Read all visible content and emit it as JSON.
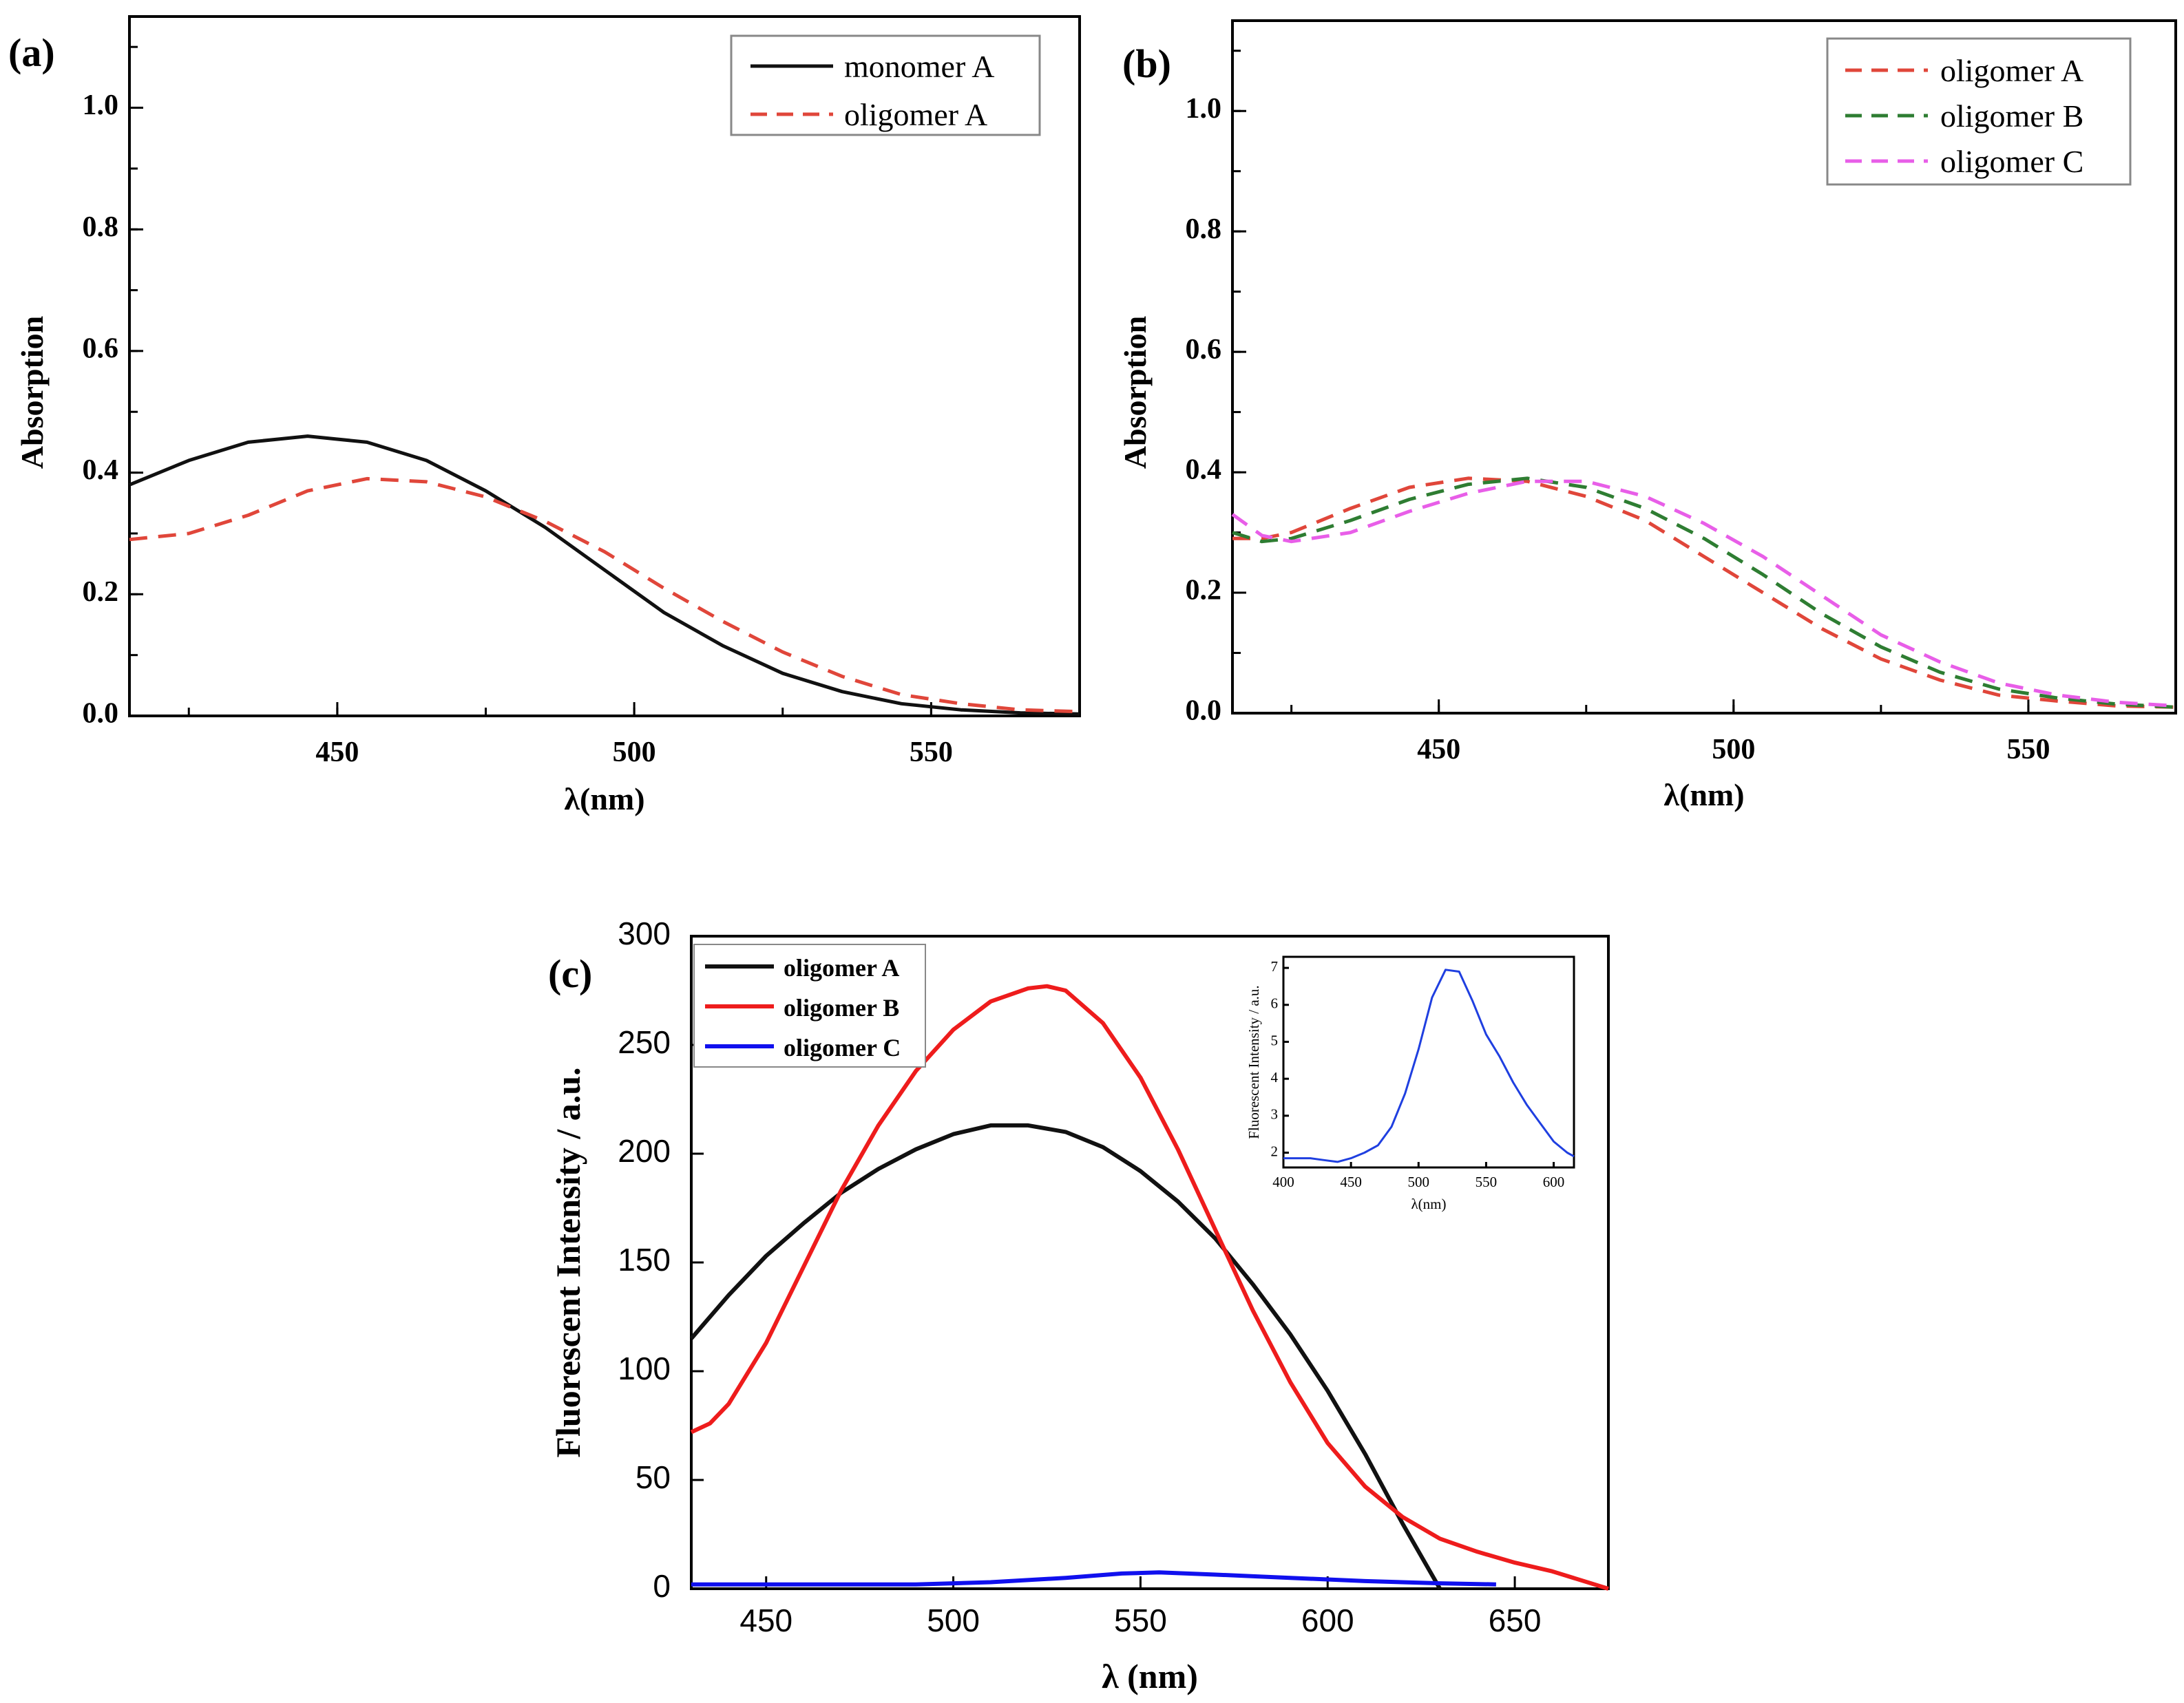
{
  "chart_data": [
    {
      "panel": "(a)",
      "type": "line",
      "xlabel": "λ(nm)",
      "ylabel": "Absorption",
      "xlim": [
        415,
        575
      ],
      "ylim": [
        0,
        1.15
      ],
      "xticks": [
        450,
        500,
        550
      ],
      "yticks": [
        0.0,
        0.2,
        0.4,
        0.6,
        0.8,
        1.0
      ],
      "legend_position": "top-right",
      "series": [
        {
          "name": "monomer A",
          "color": "#111111",
          "dash": "solid",
          "x": [
            415,
            425,
            435,
            445,
            455,
            465,
            475,
            485,
            495,
            505,
            515,
            525,
            535,
            545,
            555,
            565,
            575
          ],
          "y": [
            0.38,
            0.42,
            0.45,
            0.46,
            0.45,
            0.42,
            0.37,
            0.31,
            0.24,
            0.17,
            0.115,
            0.07,
            0.04,
            0.02,
            0.01,
            0.005,
            0.003
          ]
        },
        {
          "name": "oligomer A",
          "color": "#e0463a",
          "dash": "dashed",
          "x": [
            415,
            425,
            435,
            445,
            455,
            465,
            475,
            485,
            495,
            505,
            515,
            525,
            535,
            545,
            555,
            565,
            575
          ],
          "y": [
            0.29,
            0.3,
            0.33,
            0.37,
            0.39,
            0.385,
            0.36,
            0.32,
            0.27,
            0.21,
            0.155,
            0.105,
            0.065,
            0.035,
            0.02,
            0.01,
            0.007
          ]
        }
      ]
    },
    {
      "panel": "(b)",
      "type": "line",
      "xlabel": "λ(nm)",
      "ylabel": "Absorption",
      "xlim": [
        415,
        575
      ],
      "ylim": [
        0,
        1.15
      ],
      "xticks": [
        450,
        500,
        550
      ],
      "yticks": [
        0.0,
        0.2,
        0.4,
        0.6,
        0.8,
        1.0
      ],
      "legend_position": "top-right",
      "series": [
        {
          "name": "oligomer A",
          "color": "#e0463a",
          "dash": "dashed",
          "x": [
            415,
            420,
            425,
            435,
            445,
            455,
            465,
            475,
            485,
            495,
            505,
            515,
            525,
            535,
            545,
            555,
            565,
            575
          ],
          "y": [
            0.29,
            0.29,
            0.3,
            0.34,
            0.375,
            0.39,
            0.385,
            0.36,
            0.32,
            0.26,
            0.2,
            0.14,
            0.09,
            0.055,
            0.03,
            0.02,
            0.012,
            0.01
          ]
        },
        {
          "name": "oligomer B",
          "color": "#2e7d32",
          "dash": "dashed",
          "x": [
            415,
            420,
            425,
            435,
            445,
            455,
            465,
            475,
            485,
            495,
            505,
            515,
            525,
            535,
            545,
            555,
            565,
            575
          ],
          "y": [
            0.3,
            0.285,
            0.29,
            0.32,
            0.355,
            0.38,
            0.39,
            0.375,
            0.34,
            0.29,
            0.23,
            0.165,
            0.11,
            0.068,
            0.04,
            0.025,
            0.015,
            0.01
          ]
        },
        {
          "name": "oligomer C",
          "color": "#e85ee8",
          "dash": "dashed",
          "x": [
            415,
            420,
            425,
            435,
            445,
            455,
            465,
            475,
            485,
            495,
            505,
            515,
            525,
            535,
            545,
            555,
            565,
            575
          ],
          "y": [
            0.33,
            0.295,
            0.285,
            0.3,
            0.335,
            0.365,
            0.385,
            0.385,
            0.36,
            0.315,
            0.26,
            0.195,
            0.13,
            0.085,
            0.05,
            0.03,
            0.018,
            0.012
          ]
        }
      ]
    },
    {
      "panel": "(c)",
      "type": "line",
      "xlabel": "λ (nm)",
      "ylabel": "Fluorescent Intensity / a.u.",
      "xlim": [
        430,
        675
      ],
      "ylim": [
        0,
        300
      ],
      "xticks": [
        450,
        500,
        550,
        600,
        650
      ],
      "yticks": [
        0,
        50,
        100,
        150,
        200,
        250,
        300
      ],
      "legend_position": "top-left",
      "series": [
        {
          "name": "oligomer A",
          "color": "#111111",
          "dash": "solid",
          "x": [
            430,
            440,
            450,
            460,
            470,
            480,
            490,
            500,
            510,
            520,
            530,
            540,
            550,
            560,
            570,
            580,
            590,
            600,
            610,
            620,
            630
          ],
          "y": [
            115,
            135,
            153,
            168,
            182,
            193,
            202,
            209,
            213,
            213,
            210,
            203,
            192,
            178,
            161,
            140,
            117,
            91,
            62,
            30,
            0
          ]
        },
        {
          "name": "oligomer B",
          "color": "#ee1c1c",
          "dash": "solid",
          "x": [
            430,
            435,
            440,
            450,
            460,
            470,
            480,
            490,
            500,
            510,
            520,
            525,
            530,
            540,
            550,
            560,
            570,
            580,
            590,
            600,
            610,
            620,
            630,
            640,
            650,
            660,
            675
          ],
          "y": [
            72,
            76,
            85,
            113,
            148,
            183,
            213,
            238,
            257,
            270,
            276,
            277,
            275,
            260,
            235,
            202,
            165,
            128,
            95,
            67,
            47,
            33,
            23,
            17,
            12,
            8,
            0
          ]
        },
        {
          "name": "oligomer C",
          "color": "#1010ee",
          "dash": "solid",
          "x": [
            430,
            450,
            470,
            490,
            510,
            530,
            545,
            555,
            570,
            590,
            610,
            630,
            645
          ],
          "y": [
            2,
            2,
            2,
            2,
            3,
            5,
            7,
            7.5,
            6.5,
            5,
            3.5,
            2.5,
            2
          ]
        }
      ]
    },
    {
      "panel": "(c) inset",
      "type": "line",
      "xlabel": "λ(nm)",
      "ylabel": "Fluorescent Intensity / a.u.",
      "xlim": [
        400,
        615
      ],
      "ylim": [
        1.6,
        7.3
      ],
      "xticks": [
        400,
        450,
        500,
        550,
        600
      ],
      "yticks": [
        2,
        3,
        4,
        5,
        6,
        7
      ],
      "series": [
        {
          "name": "oligomer C",
          "color": "#1f3fe0",
          "dash": "solid",
          "x": [
            400,
            410,
            420,
            430,
            440,
            450,
            460,
            470,
            480,
            490,
            500,
            510,
            520,
            530,
            540,
            550,
            560,
            570,
            580,
            590,
            600,
            610,
            615
          ],
          "y": [
            1.85,
            1.85,
            1.85,
            1.8,
            1.75,
            1.85,
            2.0,
            2.2,
            2.7,
            3.6,
            4.8,
            6.2,
            6.95,
            6.9,
            6.1,
            5.2,
            4.6,
            3.9,
            3.3,
            2.8,
            2.3,
            2.0,
            1.9
          ]
        }
      ]
    }
  ]
}
